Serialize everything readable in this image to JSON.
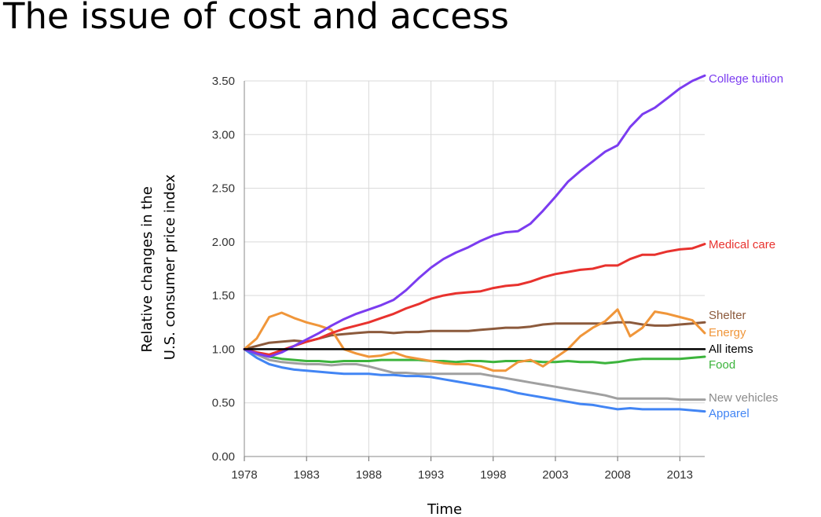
{
  "slide": {
    "title": "The issue of cost and access"
  },
  "chart_data": {
    "type": "line",
    "title": "",
    "xlabel": "Time",
    "ylabel_lines": [
      "Relative changes in the",
      "U.S. consumer price index"
    ],
    "xlim": [
      1978,
      2015
    ],
    "ylim": [
      0,
      3.5
    ],
    "x_ticks": [
      1978,
      1983,
      1988,
      1993,
      1998,
      2003,
      2008,
      2013
    ],
    "y_ticks": [
      "0.00",
      "0.50",
      "1.00",
      "1.50",
      "2.00",
      "2.50",
      "3.00",
      "3.50"
    ],
    "grid": true,
    "legend": "inline labels at right end of lines",
    "x": [
      1978,
      1979,
      1980,
      1981,
      1982,
      1983,
      1984,
      1985,
      1986,
      1987,
      1988,
      1989,
      1990,
      1991,
      1992,
      1993,
      1994,
      1995,
      1996,
      1997,
      1998,
      1999,
      2000,
      2001,
      2002,
      2003,
      2004,
      2005,
      2006,
      2007,
      2008,
      2009,
      2010,
      2011,
      2012,
      2013,
      2014,
      2015
    ],
    "series": [
      {
        "name": "College tuition",
        "color": "#7b3cf0",
        "values": [
          1.0,
          0.96,
          0.93,
          0.97,
          1.03,
          1.09,
          1.15,
          1.22,
          1.28,
          1.33,
          1.37,
          1.41,
          1.46,
          1.55,
          1.66,
          1.76,
          1.84,
          1.9,
          1.95,
          2.01,
          2.06,
          2.09,
          2.1,
          2.17,
          2.29,
          2.42,
          2.56,
          2.66,
          2.75,
          2.84,
          2.9,
          3.07,
          3.19,
          3.25,
          3.34,
          3.43,
          3.5,
          3.55
        ]
      },
      {
        "name": "Medical care",
        "color": "#e8322e",
        "values": [
          1.0,
          0.97,
          0.95,
          0.99,
          1.03,
          1.07,
          1.1,
          1.15,
          1.19,
          1.22,
          1.25,
          1.29,
          1.33,
          1.38,
          1.42,
          1.47,
          1.5,
          1.52,
          1.53,
          1.54,
          1.57,
          1.59,
          1.6,
          1.63,
          1.67,
          1.7,
          1.72,
          1.74,
          1.75,
          1.78,
          1.78,
          1.84,
          1.88,
          1.88,
          1.91,
          1.93,
          1.94,
          1.98
        ]
      },
      {
        "name": "Shelter",
        "color": "#8c5a3c",
        "values": [
          1.0,
          1.03,
          1.06,
          1.07,
          1.08,
          1.07,
          1.1,
          1.13,
          1.14,
          1.15,
          1.16,
          1.16,
          1.15,
          1.16,
          1.16,
          1.17,
          1.17,
          1.17,
          1.17,
          1.18,
          1.19,
          1.2,
          1.2,
          1.21,
          1.23,
          1.24,
          1.24,
          1.24,
          1.24,
          1.24,
          1.25,
          1.25,
          1.23,
          1.22,
          1.22,
          1.23,
          1.24,
          1.25
        ]
      },
      {
        "name": "Energy",
        "color": "#f0963a",
        "values": [
          1.0,
          1.1,
          1.3,
          1.34,
          1.29,
          1.25,
          1.22,
          1.18,
          1.0,
          0.96,
          0.93,
          0.94,
          0.97,
          0.93,
          0.91,
          0.89,
          0.87,
          0.86,
          0.86,
          0.84,
          0.8,
          0.8,
          0.88,
          0.9,
          0.84,
          0.92,
          1.0,
          1.12,
          1.2,
          1.26,
          1.37,
          1.12,
          1.2,
          1.35,
          1.33,
          1.3,
          1.27,
          1.15
        ]
      },
      {
        "name": "All items",
        "color": "#000000",
        "values": [
          1.0,
          1.0,
          1.0,
          1.0,
          1.0,
          1.0,
          1.0,
          1.0,
          1.0,
          1.0,
          1.0,
          1.0,
          1.0,
          1.0,
          1.0,
          1.0,
          1.0,
          1.0,
          1.0,
          1.0,
          1.0,
          1.0,
          1.0,
          1.0,
          1.0,
          1.0,
          1.0,
          1.0,
          1.0,
          1.0,
          1.0,
          1.0,
          1.0,
          1.0,
          1.0,
          1.0,
          1.0,
          1.0
        ]
      },
      {
        "name": "Food",
        "color": "#3cb43c",
        "values": [
          1.0,
          0.96,
          0.93,
          0.91,
          0.9,
          0.89,
          0.89,
          0.88,
          0.89,
          0.89,
          0.89,
          0.9,
          0.9,
          0.9,
          0.9,
          0.89,
          0.89,
          0.88,
          0.89,
          0.89,
          0.88,
          0.89,
          0.89,
          0.89,
          0.88,
          0.88,
          0.89,
          0.88,
          0.88,
          0.87,
          0.88,
          0.9,
          0.91,
          0.91,
          0.91,
          0.91,
          0.92,
          0.93
        ]
      },
      {
        "name": "New vehicles",
        "color": "#a0a0a0",
        "values": [
          1.0,
          0.95,
          0.9,
          0.88,
          0.87,
          0.86,
          0.86,
          0.85,
          0.86,
          0.86,
          0.84,
          0.81,
          0.78,
          0.78,
          0.77,
          0.77,
          0.77,
          0.77,
          0.77,
          0.77,
          0.75,
          0.73,
          0.71,
          0.69,
          0.67,
          0.65,
          0.63,
          0.61,
          0.59,
          0.57,
          0.54,
          0.54,
          0.54,
          0.54,
          0.54,
          0.53,
          0.53,
          0.53
        ]
      },
      {
        "name": "Apparel",
        "color": "#4285f4",
        "values": [
          1.0,
          0.92,
          0.86,
          0.83,
          0.81,
          0.8,
          0.79,
          0.78,
          0.77,
          0.77,
          0.77,
          0.76,
          0.76,
          0.75,
          0.75,
          0.74,
          0.72,
          0.7,
          0.68,
          0.66,
          0.64,
          0.62,
          0.59,
          0.57,
          0.55,
          0.53,
          0.51,
          0.49,
          0.48,
          0.46,
          0.44,
          0.45,
          0.44,
          0.44,
          0.44,
          0.44,
          0.43,
          0.42
        ]
      }
    ]
  }
}
